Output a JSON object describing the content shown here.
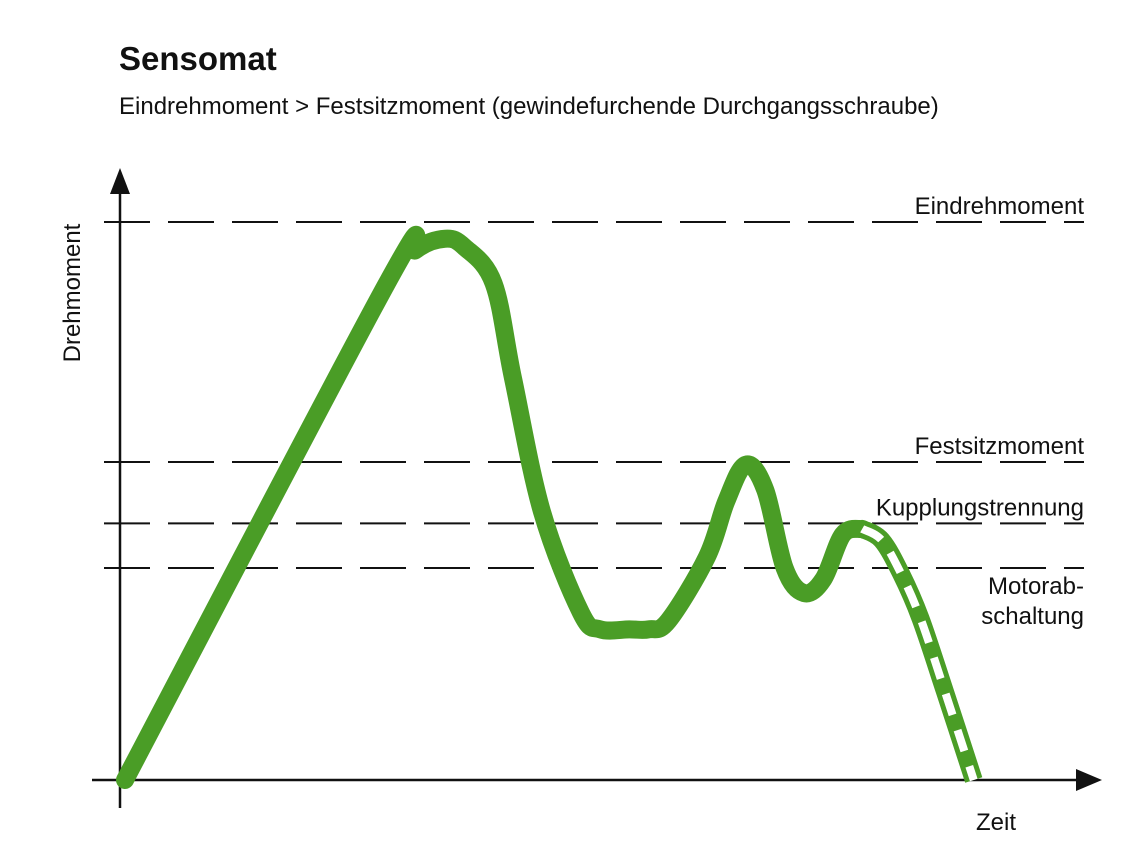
{
  "title": "Sensomat",
  "subtitle": "Eindrehmoment > Festsitzmoment (gewindefurchende Durchgangsschraube)",
  "colors": {
    "curve": "#4a9d26",
    "axis": "#111111",
    "background": "#ffffff"
  },
  "chart_data": {
    "type": "line",
    "xlabel": "Zeit",
    "ylabel": "Drehmoment",
    "grid": false,
    "xlim": [
      0,
      1
    ],
    "ylim": [
      0,
      1
    ],
    "reference_lines": [
      {
        "label": "Eindrehmoment",
        "y": 1.0
      },
      {
        "label": "Festsitzmoment",
        "y": 0.57
      },
      {
        "label": "Kupplungstrennung",
        "y": 0.46
      },
      {
        "label_lines": [
          "Motorab-",
          "schaltung"
        ],
        "y": 0.38
      }
    ],
    "series": [
      {
        "style": "solid",
        "x": [
          0.0,
          0.27,
          0.3,
          0.33,
          0.35,
          0.38,
          0.4,
          0.43,
          0.47,
          0.49,
          0.52,
          0.54,
          0.56,
          0.6,
          0.62,
          0.64,
          0.66,
          0.68,
          0.7,
          0.72,
          0.74,
          0.76
        ],
        "y": [
          0.0,
          0.89,
          0.95,
          0.97,
          0.955,
          0.89,
          0.72,
          0.48,
          0.3,
          0.27,
          0.27,
          0.27,
          0.285,
          0.4,
          0.5,
          0.565,
          0.52,
          0.38,
          0.335,
          0.36,
          0.44,
          0.45
        ]
      },
      {
        "style": "dashed",
        "x": [
          0.76,
          0.78,
          0.8,
          0.82,
          0.845,
          0.875
        ],
        "y": [
          0.45,
          0.43,
          0.37,
          0.29,
          0.16,
          0.0
        ]
      }
    ]
  }
}
